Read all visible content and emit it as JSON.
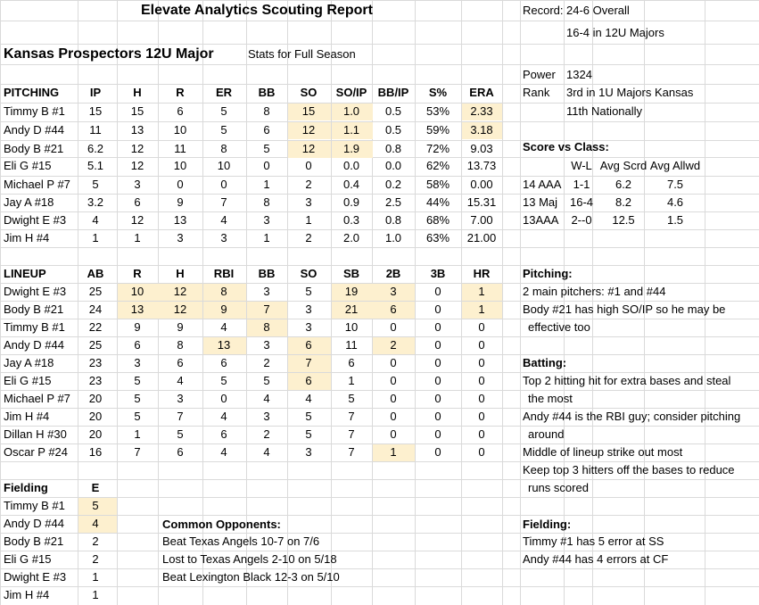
{
  "header": {
    "title": "Elevate Analytics Scouting Report",
    "team": "Kansas Prospectors 12U Major",
    "stats_period": "Stats for Full Season"
  },
  "record": {
    "label": "Record:",
    "overall": "24-6 Overall",
    "division": "16-4 in 12U Majors"
  },
  "power": {
    "label": "Power",
    "value": "1324"
  },
  "rank": {
    "label": "Rank",
    "state": "3rd in 1U Majors Kansas",
    "national": "11th Nationally"
  },
  "score_vs_class": {
    "title": "Score vs Class:",
    "headers": [
      "W-L",
      "Avg Scrd",
      "Avg Allwd"
    ],
    "rows": [
      [
        "14 AAA",
        "1-1",
        "6.2",
        "7.5"
      ],
      [
        "13 Maj",
        "16-4",
        "8.2",
        "4.6"
      ],
      [
        "13AAA",
        "2--0",
        "12.5",
        "1.5"
      ]
    ]
  },
  "pitching": {
    "headers": [
      "PITCHING",
      "IP",
      "H",
      "R",
      "ER",
      "BB",
      "SO",
      "SO/IP",
      "BB/IP",
      "S%",
      "ERA"
    ],
    "rows": [
      [
        "Timmy B #1",
        "15",
        "15",
        "6",
        "5",
        "8",
        "15",
        "1.0",
        "0.5",
        "53%",
        "2.33"
      ],
      [
        "Andy D #44",
        "11",
        "13",
        "10",
        "5",
        "6",
        "12",
        "1.1",
        "0.5",
        "59%",
        "3.18"
      ],
      [
        "Body B #21",
        "6.2",
        "12",
        "11",
        "8",
        "5",
        "12",
        "1.9",
        "0.8",
        "72%",
        "9.03"
      ],
      [
        "Eli G #15",
        "5.1",
        "12",
        "10",
        "10",
        "0",
        "0",
        "0.0",
        "0.0",
        "62%",
        "13.73"
      ],
      [
        "Michael P #7",
        "5",
        "3",
        "0",
        "0",
        "1",
        "2",
        "0.4",
        "0.2",
        "58%",
        "0.00"
      ],
      [
        "Jay A #18",
        "3.2",
        "6",
        "9",
        "7",
        "8",
        "3",
        "0.9",
        "2.5",
        "44%",
        "15.31"
      ],
      [
        "Dwight E #3",
        "4",
        "12",
        "13",
        "4",
        "3",
        "1",
        "0.3",
        "0.8",
        "68%",
        "7.00"
      ],
      [
        "Jim H #4",
        "1",
        "1",
        "3",
        "3",
        "1",
        "2",
        "2.0",
        "1.0",
        "63%",
        "21.00"
      ]
    ]
  },
  "lineup": {
    "headers": [
      "LINEUP",
      "AB",
      "R",
      "H",
      "RBI",
      "BB",
      "SO",
      "SB",
      "2B",
      "3B",
      "HR"
    ],
    "rows": [
      [
        "Dwight E #3",
        "25",
        "10",
        "12",
        "8",
        "3",
        "5",
        "19",
        "3",
        "0",
        "1"
      ],
      [
        "Body B #21",
        "24",
        "13",
        "12",
        "9",
        "7",
        "3",
        "21",
        "6",
        "0",
        "1"
      ],
      [
        "Timmy B #1",
        "22",
        "9",
        "9",
        "4",
        "8",
        "3",
        "10",
        "0",
        "0",
        "0"
      ],
      [
        "Andy D #44",
        "25",
        "6",
        "8",
        "13",
        "3",
        "6",
        "11",
        "2",
        "0",
        "0"
      ],
      [
        "Jay A #18",
        "23",
        "3",
        "6",
        "6",
        "2",
        "7",
        "6",
        "0",
        "0",
        "0"
      ],
      [
        "Eli G #15",
        "23",
        "5",
        "4",
        "5",
        "5",
        "6",
        "1",
        "0",
        "0",
        "0"
      ],
      [
        "Michael P #7",
        "20",
        "5",
        "3",
        "0",
        "4",
        "4",
        "5",
        "0",
        "0",
        "0"
      ],
      [
        "Jim H #4",
        "20",
        "5",
        "7",
        "4",
        "3",
        "5",
        "7",
        "0",
        "0",
        "0"
      ],
      [
        "Dillan H #30",
        "20",
        "1",
        "5",
        "6",
        "2",
        "5",
        "7",
        "0",
        "0",
        "0"
      ],
      [
        "Oscar P #24",
        "16",
        "7",
        "6",
        "4",
        "4",
        "3",
        "7",
        "1",
        "0",
        "0"
      ]
    ]
  },
  "fielding": {
    "headers": [
      "Fielding",
      "E"
    ],
    "rows": [
      [
        "Timmy B #1",
        "5"
      ],
      [
        "Andy D #44",
        "4"
      ],
      [
        "Body B #21",
        "2"
      ],
      [
        "Eli G #15",
        "2"
      ],
      [
        "Dwight E #3",
        "1"
      ],
      [
        "Jim H #4",
        "1"
      ]
    ]
  },
  "common_opponents": {
    "title": "Common Opponents:",
    "items": [
      "Beat Texas Angels 10-7 on 7/6",
      "Lost to Texas Angels 2-10 on 5/18",
      "Beat Lexington Black 12-3 on 5/10"
    ]
  },
  "notes": {
    "pitching_title": "Pitching:",
    "pitching": [
      "2 main pitchers:  #1 and #44",
      "Body #21 has high SO/IP so he may be",
      "effective too"
    ],
    "batting_title": "Batting:",
    "batting": [
      "Top 2 hitting hit for extra bases and steal",
      "the most",
      "Andy #44 is the RBI guy; consider pitching",
      "around",
      "Middle of lineup strike out most",
      "Keep top 3 hitters off the bases to reduce",
      "runs scored"
    ],
    "fielding_title": "Fielding:",
    "fielding": [
      "Timmy #1 has 5 error at SS",
      "Andy #44 has 4 errors at CF"
    ]
  }
}
